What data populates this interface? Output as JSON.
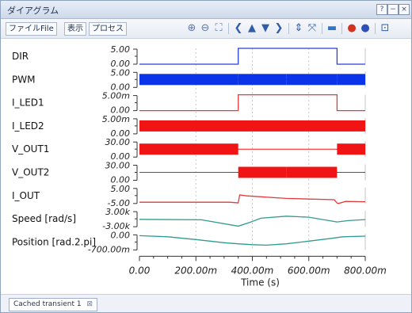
{
  "window": {
    "title": "ダイアグラム",
    "controls": [
      "?",
      "−",
      "×"
    ]
  },
  "toolbar": {
    "file_label": "ファイルFile",
    "view_label": "表示",
    "process_label": "プロセス",
    "icons": [
      {
        "name": "zoom-in-icon",
        "glyph": "⊕",
        "color": "#5c79a8"
      },
      {
        "name": "zoom-out-icon",
        "glyph": "⊖",
        "color": "#5c79a8"
      },
      {
        "name": "zoom-fit-icon",
        "glyph": "⛶",
        "color": "#5c79a8"
      },
      {
        "name": "pan-left-icon",
        "glyph": "❮",
        "color": "#2f5da8"
      },
      {
        "name": "pan-up-icon",
        "glyph": "▲",
        "color": "#2f5da8"
      },
      {
        "name": "pan-down-icon",
        "glyph": "▼",
        "color": "#2f5da8"
      },
      {
        "name": "pan-right-icon",
        "glyph": "❯",
        "color": "#2f5da8"
      },
      {
        "name": "expand-vertical-icon",
        "glyph": "⇕",
        "color": "#2f5da8"
      },
      {
        "name": "collapse-vertical-icon",
        "glyph": "⤧",
        "color": "#2f5da8"
      },
      {
        "name": "comment-icon",
        "glyph": "▬",
        "color": "#2f76c8"
      },
      {
        "name": "marker-red-icon",
        "glyph": "●",
        "color": "#d3321f"
      },
      {
        "name": "marker-blue-icon",
        "glyph": "●",
        "color": "#2e4fb5"
      },
      {
        "name": "export-icon",
        "glyph": "⊡",
        "color": "#2f5da8"
      }
    ]
  },
  "status": {
    "tab_label": "Cached transient 1"
  },
  "chart_data": {
    "type": "line",
    "x": {
      "label": "Time (s)",
      "range": [
        0,
        800
      ],
      "ticks": [
        "0.00",
        "200.00m",
        "400.00m",
        "600.00m",
        "800.00m"
      ],
      "grid": true
    },
    "series": [
      {
        "name": "DIR",
        "kind": "step",
        "color": "#2a3ed8",
        "yticks": [
          "5.00",
          "0.00"
        ],
        "ylim": [
          0,
          5
        ],
        "points": [
          [
            0,
            0
          ],
          [
            350,
            0
          ],
          [
            350,
            5
          ],
          [
            700,
            5
          ],
          [
            700,
            0
          ],
          [
            800,
            0
          ]
        ]
      },
      {
        "name": "PWM",
        "kind": "band",
        "color": "#0b34e8",
        "yticks": [
          "5.00",
          "0.00"
        ],
        "ylim": [
          0,
          5
        ],
        "segments": [
          [
            0,
            350
          ],
          [
            350,
            520
          ],
          [
            520,
            700
          ],
          [
            700,
            800
          ]
        ]
      },
      {
        "name": "I_LED1",
        "kind": "step",
        "color": "#e23b3b",
        "yticks": [
          "5.00m",
          "0.00"
        ],
        "ylim": [
          0,
          5
        ],
        "points": [
          [
            0,
            0
          ],
          [
            350,
            0
          ],
          [
            350,
            5
          ],
          [
            700,
            5
          ],
          [
            700,
            0
          ],
          [
            800,
            0
          ]
        ]
      },
      {
        "name": "I_LED2",
        "kind": "band",
        "color": "#f01414",
        "yticks": [
          "5.00m",
          "0.00"
        ],
        "ylim": [
          0,
          5
        ],
        "segments": [
          [
            0,
            800
          ]
        ]
      },
      {
        "name": "V_OUT1",
        "kind": "band",
        "color": "#f01414",
        "yticks": [
          "30.00",
          "0.00"
        ],
        "ylim": [
          0,
          30
        ],
        "segments": [
          [
            0,
            350
          ],
          [
            700,
            800
          ]
        ]
      },
      {
        "name": "V_OUT2",
        "kind": "band",
        "color": "#f01414",
        "yticks": [
          "30.00",
          "0.00"
        ],
        "ylim": [
          0,
          30
        ],
        "segments": [
          [
            350,
            520
          ],
          [
            520,
            700
          ]
        ]
      },
      {
        "name": "I_OUT",
        "kind": "line",
        "color": "#e23b3b",
        "yticks": [
          "5.00",
          "-5.00"
        ],
        "ylim": [
          -5,
          5
        ],
        "points": [
          [
            0,
            -4.2
          ],
          [
            320,
            -4.2
          ],
          [
            350,
            -4.6
          ],
          [
            355,
            0.4
          ],
          [
            380,
            -0.2
          ],
          [
            520,
            -1.8
          ],
          [
            690,
            -2.6
          ],
          [
            700,
            -4.7
          ],
          [
            705,
            -5
          ],
          [
            730,
            -3.7
          ],
          [
            800,
            -3.9
          ]
        ]
      },
      {
        "name": "Speed [rad/s]",
        "kind": "line",
        "color": "#2f9b91",
        "yticks": [
          "3.00k",
          "-3.00k"
        ],
        "ylim": [
          -3,
          3
        ],
        "points": [
          [
            0,
            -0.2
          ],
          [
            220,
            -0.4
          ],
          [
            350,
            -2.8
          ],
          [
            390,
            -1.4
          ],
          [
            430,
            0.2
          ],
          [
            520,
            1.0
          ],
          [
            600,
            0.6
          ],
          [
            700,
            -1.2
          ],
          [
            740,
            -0.7
          ],
          [
            800,
            -0.3
          ]
        ]
      },
      {
        "name": "Position [rad.2.pi]",
        "kind": "line",
        "color": "#2f9b91",
        "yticks": [
          "0.00",
          "-700.00m"
        ],
        "ylim": [
          -700,
          0
        ],
        "points": [
          [
            0,
            -70
          ],
          [
            100,
            -120
          ],
          [
            200,
            -240
          ],
          [
            300,
            -380
          ],
          [
            350,
            -430
          ],
          [
            400,
            -470
          ],
          [
            450,
            -490
          ],
          [
            520,
            -430
          ],
          [
            600,
            -310
          ],
          [
            680,
            -190
          ],
          [
            720,
            -120
          ],
          [
            800,
            -90
          ]
        ]
      }
    ]
  }
}
